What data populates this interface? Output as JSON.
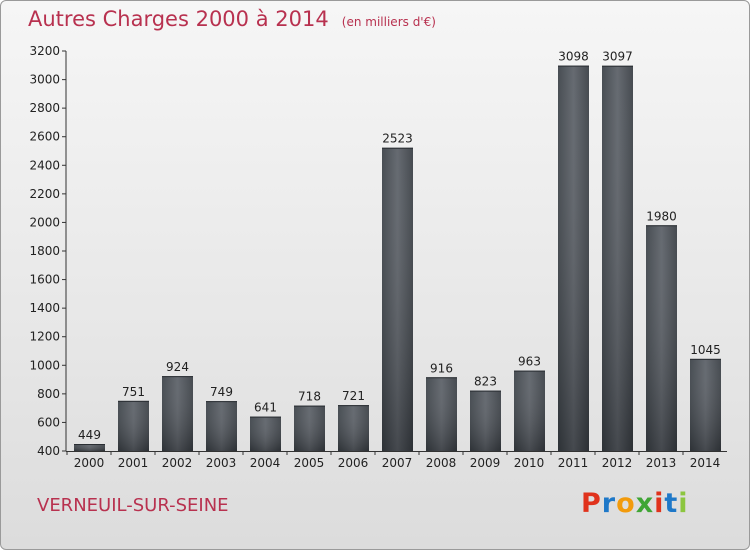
{
  "header": {
    "title": "Autres Charges 2000 à 2014",
    "subtitle": "(en milliers d'€)"
  },
  "commune": "VERNEUIL-SUR-SEINE",
  "logo": {
    "letters": [
      "P",
      "r",
      "o",
      "x",
      "i",
      "t",
      "i"
    ],
    "colors": [
      "#e0321c",
      "#1e78c8",
      "#f29b0c",
      "#3fa535",
      "#e0321c",
      "#1e78c8",
      "#8cc63f"
    ]
  },
  "chart_data": {
    "type": "bar",
    "title": "Autres Charges 2000 à 2014",
    "categories": [
      "2000",
      "2001",
      "2002",
      "2003",
      "2004",
      "2005",
      "2006",
      "2007",
      "2008",
      "2009",
      "2010",
      "2011",
      "2012",
      "2013",
      "2014"
    ],
    "values": [
      449,
      751,
      924,
      749,
      641,
      718,
      721,
      2523,
      916,
      823,
      963,
      3098,
      3097,
      1980,
      1045
    ],
    "ylim": [
      400,
      3200
    ],
    "yticks": [
      400,
      600,
      800,
      1000,
      1200,
      1400,
      1600,
      1800,
      2000,
      2200,
      2400,
      2600,
      2800,
      3000,
      3200
    ],
    "grid": false,
    "bar_color": "#4a4f55"
  }
}
